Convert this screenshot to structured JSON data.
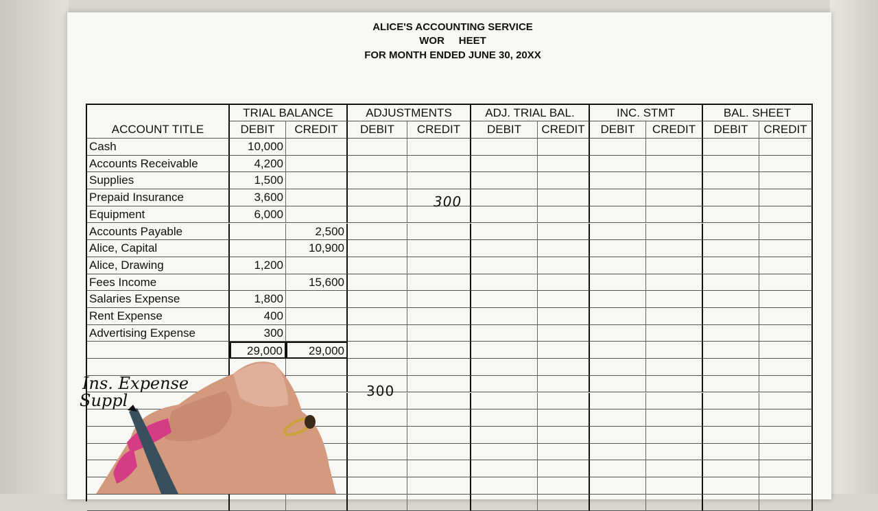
{
  "header": {
    "company": "ALICE'S ACCOUNTING SERVICE",
    "doc_title": "WOR     HEET",
    "period": "FOR MONTH ENDED JUNE 30, 20XX"
  },
  "columns": {
    "account_title": "ACCOUNT TITLE",
    "groups": [
      "TRIAL BALANCE",
      "ADJUSTMENTS",
      "ADJ. TRIAL BAL.",
      "INC. STMT",
      "BAL. SHEET"
    ],
    "debit": "DEBIT",
    "credit": "CREDIT"
  },
  "accounts": [
    {
      "title": "Cash",
      "tb_debit": "10,000",
      "tb_credit": ""
    },
    {
      "title": "Accounts Receivable",
      "tb_debit": "4,200",
      "tb_credit": ""
    },
    {
      "title": "Supplies",
      "tb_debit": "1,500",
      "tb_credit": ""
    },
    {
      "title": "Prepaid Insurance",
      "tb_debit": "3,600",
      "tb_credit": ""
    },
    {
      "title": "Equipment",
      "tb_debit": "6,000",
      "tb_credit": ""
    },
    {
      "title": "Accounts Payable",
      "tb_debit": "",
      "tb_credit": "2,500"
    },
    {
      "title": "Alice, Capital",
      "tb_debit": "",
      "tb_credit": "10,900"
    },
    {
      "title": "Alice, Drawing",
      "tb_debit": "1,200",
      "tb_credit": ""
    },
    {
      "title": "Fees Income",
      "tb_debit": "",
      "tb_credit": "15,600"
    },
    {
      "title": "Salaries Expense",
      "tb_debit": "1,800",
      "tb_credit": ""
    },
    {
      "title": "Rent Expense",
      "tb_debit": "400",
      "tb_credit": ""
    },
    {
      "title": "Advertising Expense",
      "tb_debit": "300",
      "tb_credit": ""
    }
  ],
  "totals": {
    "tb_debit": "29,000",
    "tb_credit": "29,000"
  },
  "handwritten": {
    "prepaid_adj_credit": "300",
    "ins_expense_title": "Ins. Expense",
    "ins_expense_adj_debit": "300",
    "supplies_title": "Suppl"
  }
}
